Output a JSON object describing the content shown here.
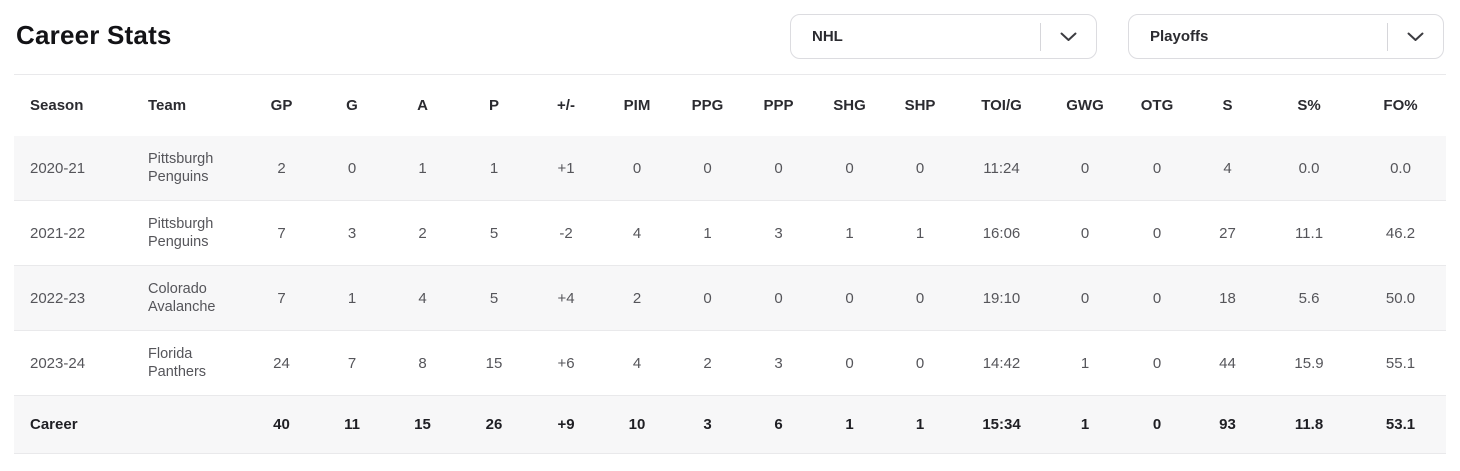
{
  "page": {
    "title": "Career Stats"
  },
  "filters": {
    "league": {
      "value": "NHL",
      "icon": "chevron-down-icon"
    },
    "mode": {
      "value": "Playoffs",
      "icon": "chevron-down-icon"
    }
  },
  "table": {
    "columns": [
      "Season",
      "Team",
      "GP",
      "G",
      "A",
      "P",
      "+/-",
      "PIM",
      "PPG",
      "PPP",
      "SHG",
      "SHP",
      "TOI/G",
      "GWG",
      "OTG",
      "S",
      "S%",
      "FO%"
    ],
    "rows": [
      {
        "season": "2020-21",
        "team": "Pittsburgh Penguins",
        "stats": [
          "2",
          "0",
          "1",
          "1",
          "+1",
          "0",
          "0",
          "0",
          "0",
          "0",
          "11:24",
          "0",
          "0",
          "4",
          "0.0",
          "0.0"
        ]
      },
      {
        "season": "2021-22",
        "team": "Pittsburgh Penguins",
        "stats": [
          "7",
          "3",
          "2",
          "5",
          "-2",
          "4",
          "1",
          "3",
          "1",
          "1",
          "16:06",
          "0",
          "0",
          "27",
          "11.1",
          "46.2"
        ]
      },
      {
        "season": "2022-23",
        "team": "Colorado Avalanche",
        "stats": [
          "7",
          "1",
          "4",
          "5",
          "+4",
          "2",
          "0",
          "0",
          "0",
          "0",
          "19:10",
          "0",
          "0",
          "18",
          "5.6",
          "50.0"
        ]
      },
      {
        "season": "2023-24",
        "team": "Florida Panthers",
        "stats": [
          "24",
          "7",
          "8",
          "15",
          "+6",
          "4",
          "2",
          "3",
          "0",
          "0",
          "14:42",
          "1",
          "0",
          "44",
          "15.9",
          "55.1"
        ]
      }
    ],
    "career_row": {
      "label": "Career",
      "team": "",
      "stats": [
        "40",
        "11",
        "15",
        "26",
        "+9",
        "10",
        "3",
        "6",
        "1",
        "1",
        "15:34",
        "1",
        "0",
        "93",
        "11.8",
        "53.1"
      ]
    }
  },
  "colors": {
    "title_text": "#131316",
    "header_text": "#2b2b30",
    "cell_text": "#55555a",
    "career_text": "#1f1f24",
    "stripe_bg": "#f7f7f8",
    "row_border": "#e9e9eb",
    "dropdown_border": "#dcdce0"
  }
}
